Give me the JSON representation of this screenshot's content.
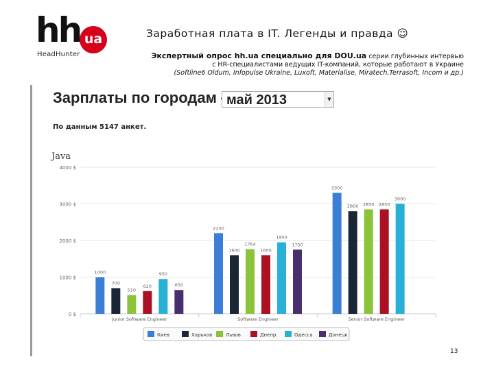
{
  "logo": {
    "main": "hh",
    "badge": "ua",
    "sub": "HeadHunter"
  },
  "slide": {
    "title": "Заработная плата в IT. Легенды  и правда ☺",
    "survey_lead": "Экспертный опрос hh.ua специально для DOU.ua",
    "survey_rest": " серии глубинных интервью с HR-специалистами ведущих IT-компаний, которые работают в Украине",
    "survey_companies": "(Softline6 Oldum, Infopulse Ukraine, Luxoft, Materialise, Miratech,Terrasoft, Incom и др.)",
    "page_number": "13"
  },
  "panel": {
    "heading": "Зарплаты по городам  —",
    "month_selected": "май 2013",
    "respondents": "По данным 5147 анкет."
  },
  "chart_data": {
    "type": "bar",
    "title": "Java",
    "ylim": [
      0,
      4000
    ],
    "ytick_labels": [
      "0 $",
      "1000 $",
      "2000 $",
      "3000 $",
      "4000 $"
    ],
    "grid": true,
    "legend_position": "bottom",
    "categories": [
      "Junior Software Engineer",
      "Software Engineer",
      "Senior Software Engineer"
    ],
    "series": [
      {
        "name": "Киев",
        "color": "#3a7fd5",
        "values": [
          1000,
          2200,
          3300
        ],
        "labels": [
          "1000",
          "2200",
          "3300"
        ]
      },
      {
        "name": "Харьков",
        "color": "#1a2535",
        "values": [
          700,
          1600,
          2800
        ],
        "labels": [
          "700",
          "1600",
          "2800"
        ]
      },
      {
        "name": "Львов",
        "color": "#8bc43a",
        "values": [
          510,
          1764,
          2850
        ],
        "labels": [
          "510",
          "1764",
          "2850"
        ]
      },
      {
        "name": "Днепр.",
        "color": "#aa1122",
        "values": [
          620,
          1600,
          2850
        ],
        "labels": [
          "620",
          "1600",
          "2850"
        ]
      },
      {
        "name": "Одесса",
        "color": "#29b0d6",
        "values": [
          950,
          1950,
          3000
        ],
        "labels": [
          "950",
          "1950",
          "3000"
        ]
      },
      {
        "name": "Донецк",
        "color": "#4a2f6e",
        "values": [
          650,
          1750,
          null
        ],
        "labels": [
          "650",
          "1750",
          ""
        ]
      }
    ]
  }
}
